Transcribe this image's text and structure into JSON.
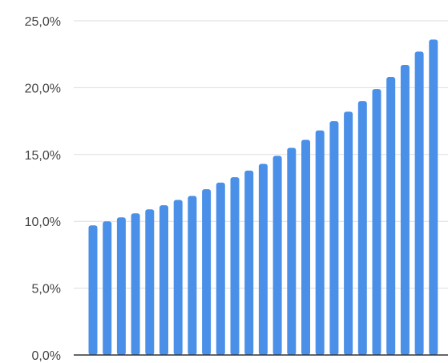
{
  "chart_data": {
    "type": "bar",
    "title": "",
    "xlabel": "",
    "ylabel": "",
    "ylim": [
      0,
      25
    ],
    "y_ticks": [
      {
        "value": 0,
        "label": "0,0%"
      },
      {
        "value": 5,
        "label": "5,0%"
      },
      {
        "value": 10,
        "label": "10,0%"
      },
      {
        "value": 15,
        "label": "15,0%"
      },
      {
        "value": 20,
        "label": "20,0%"
      },
      {
        "value": 25,
        "label": "25,0%"
      }
    ],
    "grid": true,
    "legend": "none",
    "bar_color": "#4A90E8",
    "grid_color": "#DDDDDD",
    "axis_color": "#333333",
    "values": [
      9.7,
      10.0,
      10.3,
      10.6,
      10.9,
      11.2,
      11.6,
      11.9,
      12.4,
      12.9,
      13.3,
      13.8,
      14.3,
      14.9,
      15.5,
      16.1,
      16.8,
      17.5,
      18.2,
      19.0,
      19.9,
      20.8,
      21.7,
      22.7,
      23.6
    ]
  }
}
